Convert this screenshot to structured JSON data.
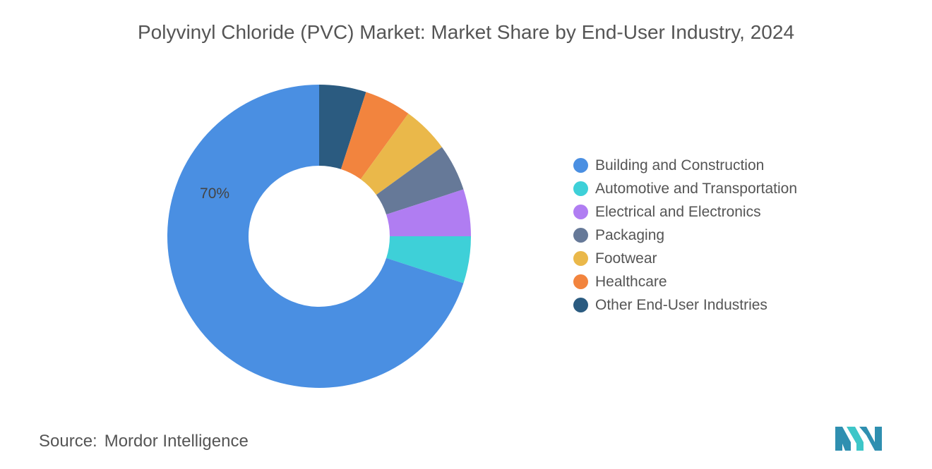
{
  "chart_data": {
    "type": "pie",
    "title": "Polyvinyl Chloride (PVC) Market: Market Share by End-User Industry, 2024",
    "donut": true,
    "slices": [
      {
        "name": "Other End-User Industries",
        "value": 5,
        "color": "#2b5b80"
      },
      {
        "name": "Healthcare",
        "value": 5,
        "color": "#f2843e"
      },
      {
        "name": "Footwear",
        "value": 5,
        "color": "#eab84a"
      },
      {
        "name": "Packaging",
        "value": 5,
        "color": "#667998"
      },
      {
        "name": "Electrical and Electronics",
        "value": 5,
        "color": "#b07df2"
      },
      {
        "name": "Automotive and Transportation",
        "value": 5,
        "color": "#3ed0d8"
      },
      {
        "name": "Building and Construction",
        "value": 70,
        "color": "#4a8fe2",
        "label": "70%"
      }
    ],
    "legend": {
      "placement": "right",
      "entries": [
        {
          "name": "Building and Construction",
          "color": "#4a8fe2"
        },
        {
          "name": "Automotive and Transportation",
          "color": "#3ed0d8"
        },
        {
          "name": "Electrical and Electronics",
          "color": "#b07df2"
        },
        {
          "name": "Packaging",
          "color": "#667998"
        },
        {
          "name": "Footwear",
          "color": "#eab84a"
        },
        {
          "name": "Healthcare",
          "color": "#f2843e"
        },
        {
          "name": "Other End-User Industries",
          "color": "#2b5b80"
        }
      ]
    }
  },
  "source": {
    "label": "Source:",
    "value": "Mordor Intelligence"
  },
  "logo": {
    "icon": "mordor-intelligence-logo",
    "colors": [
      "#2f8fb0",
      "#3ec6c8"
    ]
  }
}
